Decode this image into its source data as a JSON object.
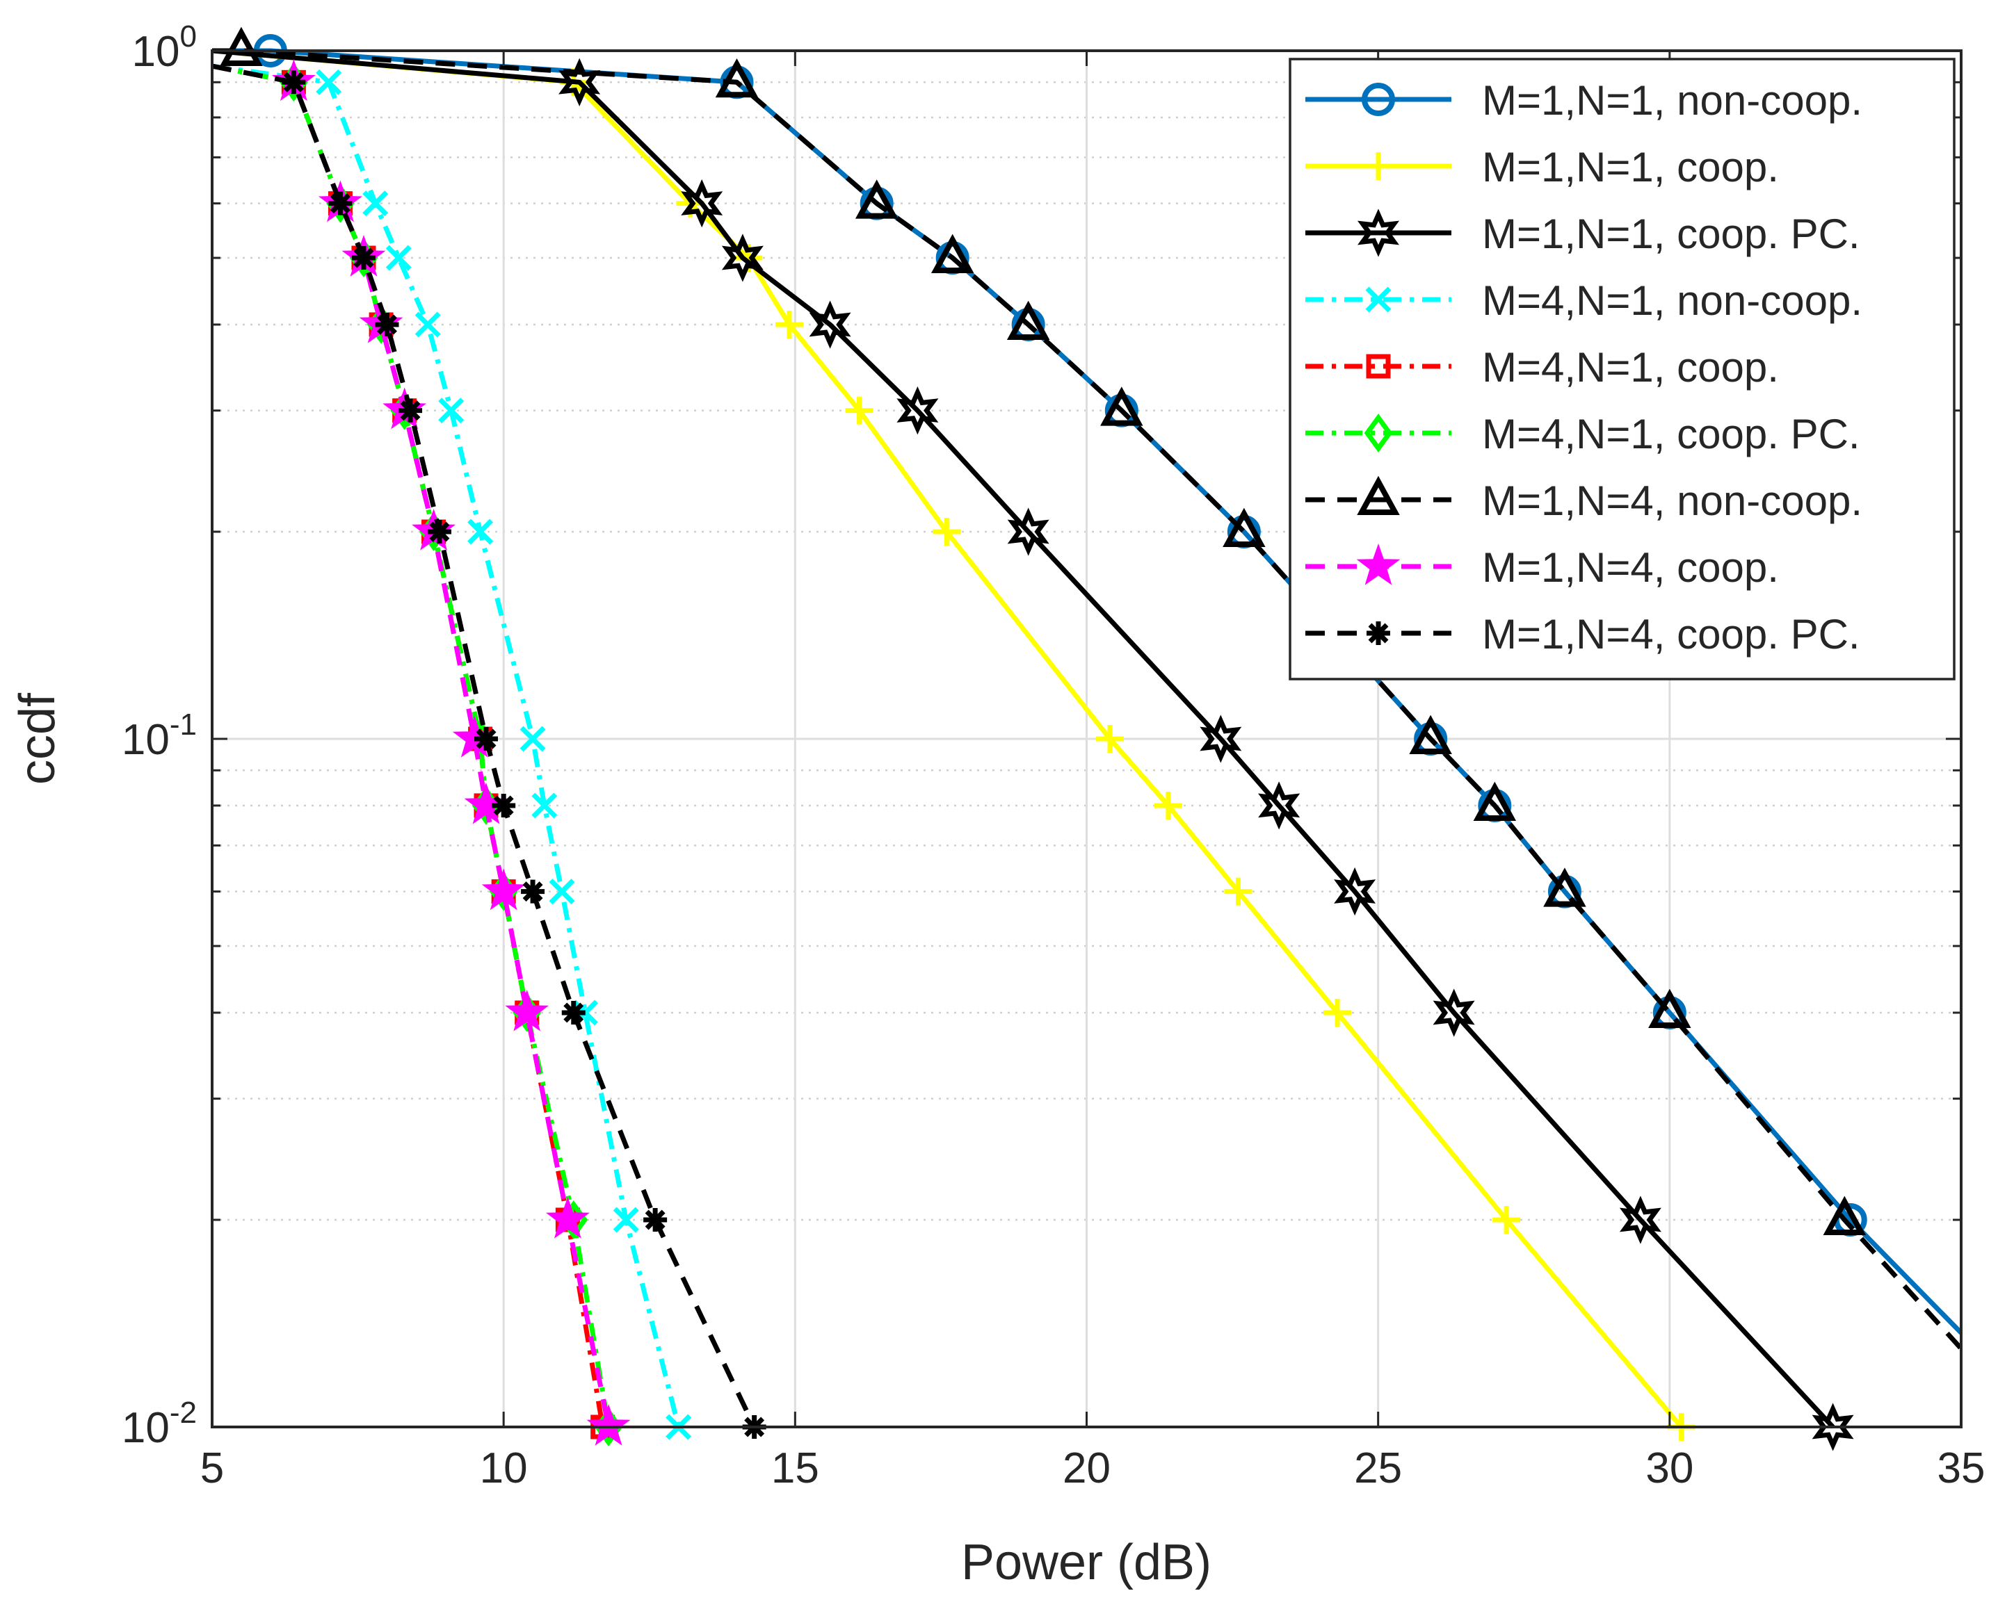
{
  "chart_data": {
    "type": "line",
    "title": "",
    "xlabel": "Power (dB)",
    "ylabel": "ccdf",
    "yscale": "log",
    "xlim": [
      5,
      35
    ],
    "ylim": [
      0.01,
      1
    ],
    "xticks": [
      5,
      10,
      15,
      20,
      25,
      30,
      35
    ],
    "xtick_labels": [
      "5",
      "10",
      "15",
      "20",
      "25",
      "30",
      "35"
    ],
    "yticks": [
      {
        "value": 1,
        "base": "10",
        "exp": "0"
      },
      {
        "value": 0.1,
        "base": "10",
        "exp": "-1"
      },
      {
        "value": 0.01,
        "base": "10",
        "exp": "-2"
      }
    ],
    "grid": true,
    "minor_grid": true,
    "legend_position": "top-right",
    "series": [
      {
        "name": "M=1,N=1, non-coop.",
        "color": "#0072BD",
        "dash": "solid",
        "marker": "circle",
        "x": [
          5.0,
          6.0,
          14.0,
          16.4,
          17.7,
          19.0,
          20.6,
          22.7,
          25.9,
          27.0,
          28.2,
          30.0,
          33.1,
          35.0
        ],
        "y": [
          1.0,
          1.0,
          0.9,
          0.6,
          0.5,
          0.4,
          0.3,
          0.2,
          0.1,
          0.08,
          0.06,
          0.04,
          0.02,
          0.0137
        ]
      },
      {
        "name": "M=1,N=1, coop.",
        "color": "#FFFF00",
        "dash": "solid",
        "marker": "plus",
        "x": [
          5.0,
          11.2,
          13.2,
          14.2,
          14.9,
          16.1,
          17.6,
          20.4,
          21.4,
          22.6,
          24.3,
          27.2,
          30.2
        ],
        "y": [
          1.0,
          0.9,
          0.6,
          0.5,
          0.4,
          0.3,
          0.2,
          0.1,
          0.08,
          0.06,
          0.04,
          0.02,
          0.01
        ]
      },
      {
        "name": "M=1,N=1, coop. PC.",
        "color": "#000000",
        "dash": "solid",
        "marker": "hexagram",
        "x": [
          5.0,
          11.3,
          13.4,
          14.1,
          15.6,
          17.1,
          19.0,
          22.3,
          23.3,
          24.6,
          26.3,
          29.5,
          32.8
        ],
        "y": [
          1.0,
          0.9,
          0.6,
          0.5,
          0.4,
          0.3,
          0.2,
          0.1,
          0.08,
          0.06,
          0.04,
          0.02,
          0.01
        ]
      },
      {
        "name": "M=4,N=1, non-coop.",
        "color": "#00FFFF",
        "dash": "dashdot",
        "marker": "x",
        "x": [
          5.0,
          7.0,
          7.8,
          8.2,
          8.7,
          9.1,
          9.6,
          10.5,
          10.7,
          11.0,
          11.4,
          12.1,
          13.0
        ],
        "y": [
          0.95,
          0.9,
          0.6,
          0.5,
          0.4,
          0.3,
          0.2,
          0.1,
          0.08,
          0.06,
          0.04,
          0.02,
          0.01
        ]
      },
      {
        "name": "M=4,N=1, coop.",
        "color": "#FF0000",
        "dash": "dashdot",
        "marker": "square",
        "x": [
          5.0,
          6.4,
          7.2,
          7.6,
          7.9,
          8.3,
          8.8,
          9.6,
          9.7,
          10.0,
          10.4,
          11.1,
          11.7
        ],
        "y": [
          0.95,
          0.9,
          0.6,
          0.5,
          0.4,
          0.3,
          0.2,
          0.1,
          0.08,
          0.06,
          0.04,
          0.02,
          0.01
        ]
      },
      {
        "name": "M=4,N=1, coop. PC.",
        "color": "#00FF00",
        "dash": "dashdot",
        "marker": "diamond",
        "x": [
          5.0,
          6.4,
          7.2,
          7.6,
          7.9,
          8.3,
          8.8,
          9.6,
          9.7,
          10.0,
          10.4,
          11.2,
          11.8
        ],
        "y": [
          0.95,
          0.9,
          0.6,
          0.5,
          0.4,
          0.3,
          0.2,
          0.1,
          0.08,
          0.06,
          0.04,
          0.02,
          0.01
        ]
      },
      {
        "name": "M=1,N=4, non-coop.",
        "color": "#000000",
        "dash": "dashed",
        "marker": "triangle",
        "x": [
          5.0,
          5.5,
          14.0,
          16.4,
          17.7,
          19.0,
          20.6,
          22.7,
          25.9,
          27.0,
          28.2,
          30.0,
          33.0,
          35.0
        ],
        "y": [
          1.0,
          1.0,
          0.9,
          0.6,
          0.5,
          0.4,
          0.3,
          0.2,
          0.1,
          0.08,
          0.06,
          0.04,
          0.02,
          0.013
        ]
      },
      {
        "name": "M=1,N=4, coop.",
        "color": "#FF00FF",
        "dash": "dashed",
        "marker": "pentagram",
        "x": [
          5.0,
          6.4,
          7.2,
          7.6,
          7.9,
          8.3,
          8.8,
          9.5,
          9.7,
          10.0,
          10.4,
          11.1,
          11.8
        ],
        "y": [
          0.95,
          0.9,
          0.6,
          0.5,
          0.4,
          0.3,
          0.2,
          0.1,
          0.08,
          0.06,
          0.04,
          0.02,
          0.01
        ]
      },
      {
        "name": "M=1,N=4, coop. PC.",
        "color": "#000000",
        "dash": "dashed",
        "marker": "asterisk",
        "x": [
          5.0,
          6.4,
          7.2,
          7.6,
          8.0,
          8.4,
          8.9,
          9.7,
          10.0,
          10.5,
          11.2,
          12.6,
          14.3
        ],
        "y": [
          0.95,
          0.9,
          0.6,
          0.5,
          0.4,
          0.3,
          0.2,
          0.1,
          0.08,
          0.06,
          0.04,
          0.02,
          0.01
        ]
      }
    ]
  }
}
